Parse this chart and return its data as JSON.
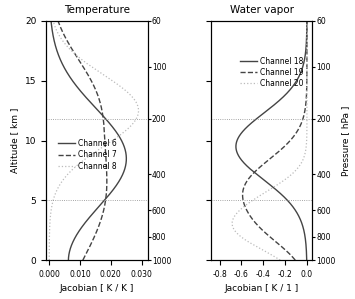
{
  "title_left": "Temperature",
  "title_right": "Water vapor",
  "xlabel_left": "Jacobian [ K / K ]",
  "xlabel_right": "Jacobian [ K / 1 ]",
  "ylabel_left": "Altitude [ km ]",
  "ylabel_right": "Pressure [ hPa ]",
  "alt_min": 0,
  "alt_max": 20,
  "pressure_ticks": [
    60,
    100,
    200,
    400,
    600,
    800,
    1000
  ],
  "pressure_alt": [
    20.0,
    16.18,
    11.84,
    7.19,
    4.19,
    1.94,
    0.0
  ],
  "xlim_left": [
    -0.001,
    0.032
  ],
  "xlim_right": [
    -0.88,
    0.05
  ],
  "xticks_left": [
    0.0,
    0.01,
    0.02,
    0.03
  ],
  "xticks_right": [
    -0.8,
    -0.6,
    -0.4,
    -0.2,
    0.0
  ],
  "hlines_alt": [
    5.0,
    11.8
  ],
  "color_ch6": "#444444",
  "color_ch7": "#444444",
  "color_ch8": "#bbbbbb",
  "color_ch18": "#444444",
  "color_ch19": "#444444",
  "color_ch20": "#bbbbbb",
  "legend_left": [
    "Channel 6",
    "Channel 7",
    "Channel 8"
  ],
  "legend_right": [
    "Channel 18",
    "Channel 19",
    "Channel 20"
  ]
}
